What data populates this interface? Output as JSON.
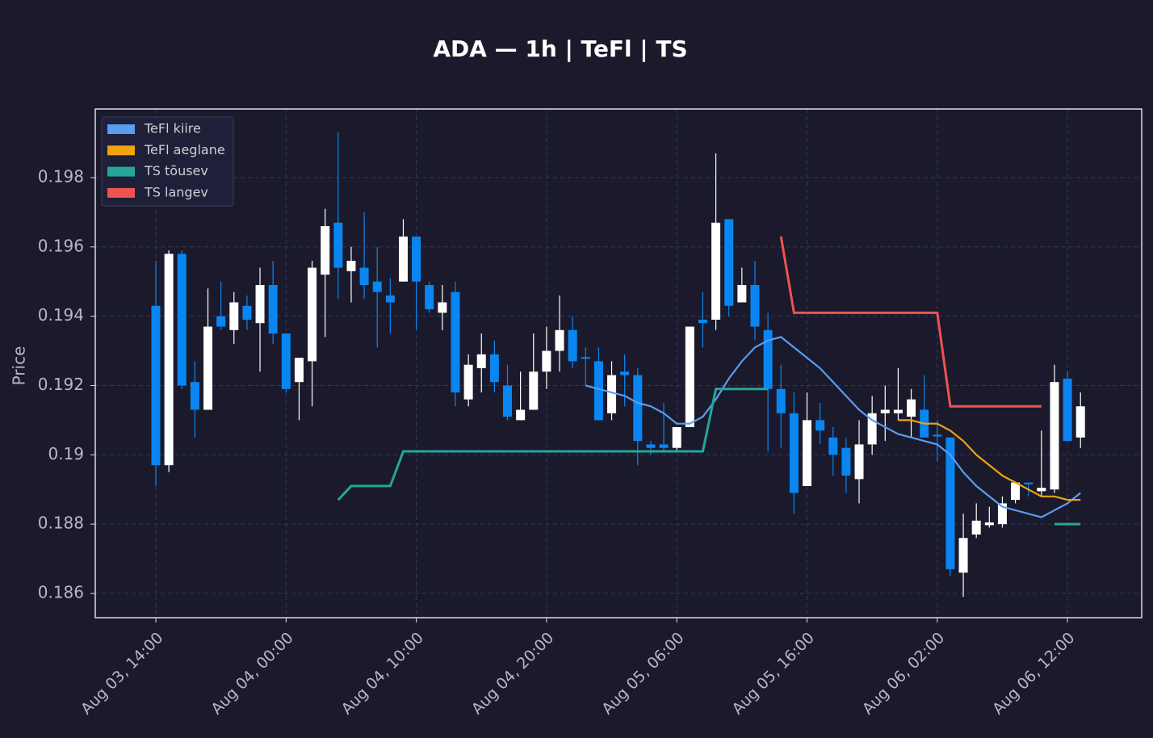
{
  "chart_data": {
    "type": "candlestick",
    "title": "ADA — 1h  |  TeFl  |  TS",
    "y_label": "Price",
    "x": [
      "Aug 03, 14:00",
      "Aug 03, 15:00",
      "Aug 03, 16:00",
      "Aug 03, 17:00",
      "Aug 03, 18:00",
      "Aug 03, 19:00",
      "Aug 03, 20:00",
      "Aug 03, 21:00",
      "Aug 03, 22:00",
      "Aug 03, 23:00",
      "Aug 04, 00:00",
      "Aug 04, 01:00",
      "Aug 04, 02:00",
      "Aug 04, 03:00",
      "Aug 04, 04:00",
      "Aug 04, 05:00",
      "Aug 04, 06:00",
      "Aug 04, 07:00",
      "Aug 04, 08:00",
      "Aug 04, 09:00",
      "Aug 04, 10:00",
      "Aug 04, 11:00",
      "Aug 04, 12:00",
      "Aug 04, 13:00",
      "Aug 04, 14:00",
      "Aug 04, 15:00",
      "Aug 04, 16:00",
      "Aug 04, 17:00",
      "Aug 04, 18:00",
      "Aug 04, 19:00",
      "Aug 04, 20:00",
      "Aug 04, 21:00",
      "Aug 04, 22:00",
      "Aug 04, 23:00",
      "Aug 05, 00:00",
      "Aug 05, 01:00",
      "Aug 05, 02:00",
      "Aug 05, 03:00",
      "Aug 05, 04:00",
      "Aug 05, 05:00",
      "Aug 05, 06:00",
      "Aug 05, 07:00",
      "Aug 05, 08:00",
      "Aug 05, 09:00",
      "Aug 05, 10:00",
      "Aug 05, 11:00",
      "Aug 05, 12:00",
      "Aug 05, 13:00",
      "Aug 05, 14:00",
      "Aug 05, 15:00",
      "Aug 05, 16:00",
      "Aug 05, 17:00",
      "Aug 05, 18:00",
      "Aug 05, 19:00",
      "Aug 05, 20:00",
      "Aug 05, 21:00",
      "Aug 05, 22:00",
      "Aug 05, 23:00",
      "Aug 06, 00:00",
      "Aug 06, 01:00",
      "Aug 06, 02:00",
      "Aug 06, 03:00",
      "Aug 06, 04:00",
      "Aug 06, 05:00",
      "Aug 06, 06:00",
      "Aug 06, 07:00",
      "Aug 06, 08:00",
      "Aug 06, 09:00",
      "Aug 06, 10:00",
      "Aug 06, 11:00",
      "Aug 06, 12:00",
      "Aug 06, 13:00"
    ],
    "open": [
      0.1943,
      0.1897,
      0.1958,
      0.1921,
      0.1913,
      0.194,
      0.1936,
      0.1943,
      0.1938,
      0.1949,
      0.1935,
      0.1921,
      0.1927,
      0.1952,
      0.1967,
      0.1953,
      0.1954,
      0.195,
      0.1946,
      0.195,
      0.1963,
      0.1949,
      0.1941,
      0.1947,
      0.1916,
      0.1925,
      0.1929,
      0.192,
      0.191,
      0.1913,
      0.1924,
      0.193,
      0.1936,
      0.19282,
      0.1927,
      0.1912,
      0.1924,
      0.1923,
      0.1903,
      0.1903,
      0.1902,
      0.1908,
      0.1939,
      0.1939,
      0.1968,
      0.1944,
      0.1949,
      0.1936,
      0.1919,
      0.1912,
      0.1891,
      0.191,
      0.1905,
      0.1902,
      0.1893,
      0.1903,
      0.1912,
      0.1912,
      0.1911,
      0.1913,
      0.19058,
      0.1905,
      0.1866,
      0.1877,
      0.18797,
      0.188,
      0.1887,
      0.1892,
      0.18895,
      0.189,
      0.1922,
      0.1905
    ],
    "high": [
      0.1956,
      0.1959,
      0.1959,
      0.1927,
      0.1948,
      0.195,
      0.1947,
      0.1946,
      0.1954,
      0.1956,
      0.1935,
      0.1928,
      0.1956,
      0.1971,
      0.1993,
      0.196,
      0.197,
      0.196,
      0.1951,
      0.1968,
      0.1963,
      0.195,
      0.1949,
      0.195,
      0.1929,
      0.1935,
      0.1933,
      0.1926,
      0.1924,
      0.1935,
      0.1937,
      0.1946,
      0.194,
      0.1931,
      0.1931,
      0.1927,
      0.1929,
      0.1925,
      0.1904,
      0.1915,
      0.1908,
      0.1937,
      0.1947,
      0.1987,
      0.1968,
      0.1954,
      0.1956,
      0.1941,
      0.1926,
      0.1918,
      0.1918,
      0.1915,
      0.1908,
      0.1905,
      0.191,
      0.1917,
      0.192,
      0.1925,
      0.1919,
      0.1923,
      0.191,
      0.1905,
      0.1883,
      0.1886,
      0.1885,
      0.1888,
      0.1892,
      0.1892,
      0.1907,
      0.1926,
      0.1924,
      0.1918
    ],
    "low": [
      0.1891,
      0.1895,
      0.1919,
      0.1905,
      0.1913,
      0.1936,
      0.1932,
      0.1936,
      0.1924,
      0.1932,
      0.1918,
      0.191,
      0.1914,
      0.1934,
      0.1945,
      0.1944,
      0.1945,
      0.1931,
      0.1935,
      0.195,
      0.1936,
      0.1941,
      0.1936,
      0.1914,
      0.1914,
      0.1918,
      0.1918,
      0.191,
      0.191,
      0.1913,
      0.1919,
      0.1924,
      0.1925,
      0.192,
      0.191,
      0.191,
      0.1914,
      0.1897,
      0.19,
      0.1901,
      0.1901,
      0.1908,
      0.1931,
      0.1936,
      0.194,
      0.1944,
      0.1933,
      0.1901,
      0.1902,
      0.1883,
      0.1891,
      0.1903,
      0.1894,
      0.1889,
      0.1886,
      0.19,
      0.1904,
      0.191,
      0.1905,
      0.1905,
      0.1898,
      0.1865,
      0.1859,
      0.1876,
      0.1879,
      0.1879,
      0.1886,
      0.1888,
      0.1888,
      0.1889,
      0.1904,
      0.1902
    ],
    "close": [
      0.1897,
      0.1958,
      0.192,
      0.1913,
      0.1937,
      0.1937,
      0.1944,
      0.1939,
      0.1949,
      0.1935,
      0.1919,
      0.1928,
      0.1954,
      0.1966,
      0.1954,
      0.1956,
      0.1949,
      0.1947,
      0.1944,
      0.1963,
      0.195,
      0.1942,
      0.1944,
      0.1918,
      0.1926,
      0.1929,
      0.1921,
      0.1911,
      0.1913,
      0.1924,
      0.193,
      0.1936,
      0.1927,
      0.19278,
      0.191,
      0.1923,
      0.1923,
      0.1904,
      0.1902,
      0.1902,
      0.1908,
      0.1937,
      0.1938,
      0.1967,
      0.1943,
      0.1949,
      0.1937,
      0.1919,
      0.1912,
      0.1889,
      0.191,
      0.1907,
      0.19,
      0.1894,
      0.1903,
      0.1912,
      0.1913,
      0.1913,
      0.1916,
      0.1905,
      0.19053,
      0.1867,
      0.1876,
      0.1881,
      0.18805,
      0.1886,
      0.1892,
      0.18915,
      0.18905,
      0.1921,
      0.1904,
      0.1914
    ],
    "up_color": "#ffffff",
    "down_color": "#0a86f2",
    "lines": [
      {
        "name": "TeFl kiire",
        "color": "#5a9cf0",
        "values": [
          null,
          null,
          null,
          null,
          null,
          null,
          null,
          null,
          null,
          null,
          null,
          null,
          null,
          null,
          null,
          null,
          null,
          null,
          null,
          null,
          null,
          null,
          null,
          null,
          null,
          null,
          null,
          null,
          null,
          null,
          null,
          null,
          null,
          0.192,
          0.1919,
          0.1918,
          0.1917,
          0.1915,
          0.1914,
          0.1912,
          0.1909,
          0.1909,
          0.1911,
          0.1916,
          0.1922,
          0.1927,
          0.1931,
          0.1933,
          0.1934,
          0.1931,
          0.1928,
          0.1925,
          0.1921,
          0.1917,
          0.1913,
          0.191,
          0.1908,
          0.1906,
          0.1905,
          0.1904,
          0.1903,
          0.19,
          0.1895,
          0.1891,
          0.1888,
          0.1885,
          0.1884,
          0.1883,
          0.1882,
          0.1884,
          0.1886,
          0.1889
        ]
      },
      {
        "name": "TeFl aeglane",
        "color": "#f0a30a",
        "values": [
          null,
          null,
          null,
          null,
          null,
          null,
          null,
          null,
          null,
          null,
          null,
          null,
          null,
          null,
          null,
          null,
          null,
          null,
          null,
          null,
          null,
          null,
          null,
          null,
          null,
          null,
          null,
          null,
          null,
          null,
          null,
          null,
          null,
          null,
          null,
          null,
          null,
          null,
          null,
          null,
          null,
          null,
          null,
          null,
          null,
          null,
          null,
          null,
          null,
          null,
          null,
          null,
          null,
          null,
          null,
          null,
          null,
          0.191,
          0.191,
          0.1909,
          0.1909,
          0.1907,
          0.1904,
          0.19,
          0.1897,
          0.1894,
          0.1892,
          0.189,
          0.1888,
          0.1888,
          0.1887,
          0.1887
        ]
      },
      {
        "name": "TS tõusev",
        "color": "#26a69a",
        "values": [
          null,
          null,
          null,
          null,
          null,
          null,
          null,
          null,
          null,
          null,
          null,
          null,
          null,
          null,
          0.1887,
          0.1891,
          0.1891,
          0.1891,
          0.1891,
          0.1901,
          0.1901,
          0.1901,
          0.1901,
          0.1901,
          0.1901,
          0.1901,
          0.1901,
          0.1901,
          0.1901,
          0.1901,
          0.1901,
          0.1901,
          0.1901,
          0.1901,
          0.1901,
          0.1901,
          0.1901,
          0.1901,
          0.1901,
          0.1901,
          0.1901,
          0.1901,
          0.1901,
          0.1919,
          0.1919,
          0.1919,
          0.1919,
          0.1919,
          null,
          null,
          null,
          null,
          null,
          null,
          null,
          null,
          null,
          null,
          null,
          null,
          null,
          null,
          null,
          null,
          null,
          null,
          null,
          null,
          null,
          0.188,
          0.188,
          0.188
        ]
      },
      {
        "name": "TS langev",
        "color": "#ef5350",
        "values": [
          null,
          null,
          null,
          null,
          null,
          null,
          null,
          null,
          null,
          null,
          null,
          null,
          null,
          null,
          null,
          null,
          null,
          null,
          null,
          null,
          null,
          null,
          null,
          null,
          null,
          null,
          null,
          null,
          null,
          null,
          null,
          null,
          null,
          null,
          null,
          null,
          null,
          null,
          null,
          null,
          null,
          null,
          null,
          null,
          null,
          null,
          null,
          null,
          0.1963,
          0.1941,
          0.1941,
          0.1941,
          0.1941,
          0.1941,
          0.1941,
          0.1941,
          0.1941,
          0.1941,
          0.1941,
          0.1941,
          0.1941,
          0.1914,
          0.1914,
          0.1914,
          0.1914,
          0.1914,
          0.1914,
          0.1914,
          0.1914,
          null,
          null,
          null
        ]
      }
    ],
    "ylim": [
      0.1853,
      0.19998
    ],
    "yticks": [
      0.186,
      0.188,
      0.19,
      0.192,
      0.194,
      0.196,
      0.198
    ],
    "xticks": [
      "Aug 03, 14:00",
      "Aug 04, 00:00",
      "Aug 04, 10:00",
      "Aug 04, 20:00",
      "Aug 05, 06:00",
      "Aug 05, 16:00",
      "Aug 06, 02:00",
      "Aug 06, 12:00"
    ],
    "grid": true,
    "legend": "upper left"
  }
}
